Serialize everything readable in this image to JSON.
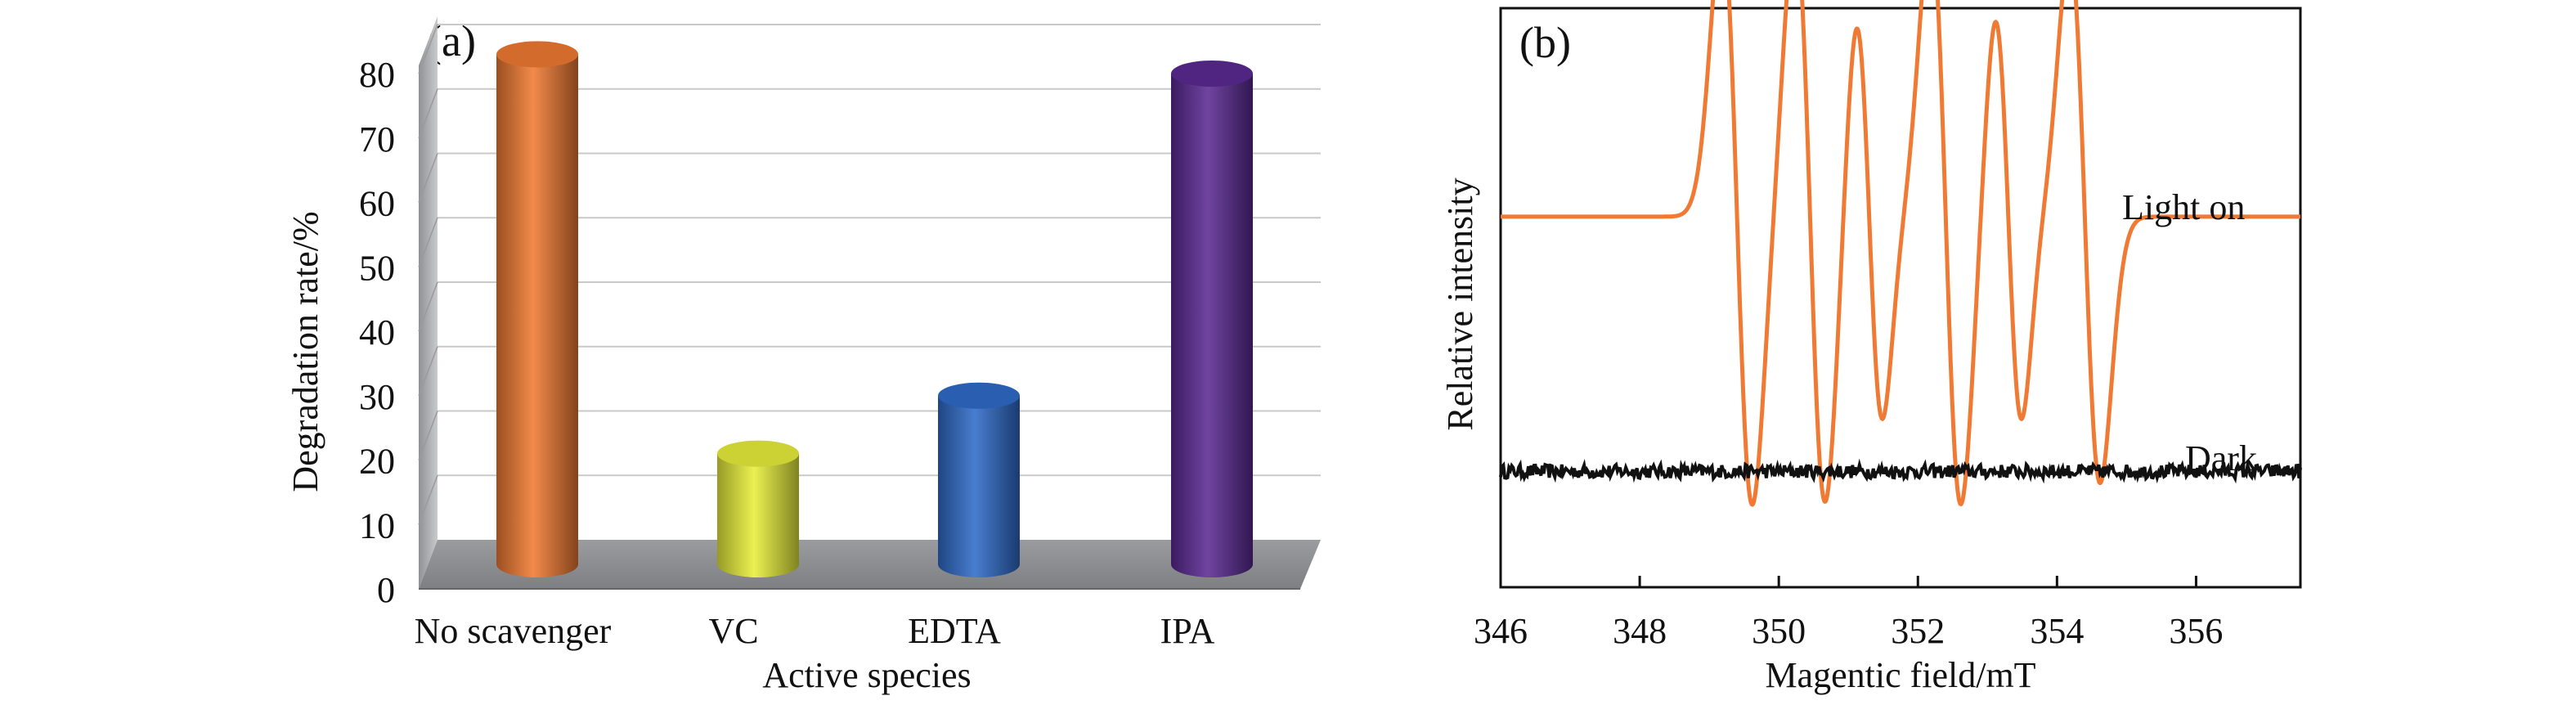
{
  "chart_data": [
    {
      "panel": "(a)",
      "type": "bar",
      "style": "3d-cylinder",
      "xlabel": "Active species",
      "ylabel": "Degradation rate/%",
      "categories": [
        "No scavenger",
        "VC",
        "EDTA",
        "IPA"
      ],
      "values": [
        83,
        21,
        30,
        80
      ],
      "colors": [
        "#f07a33",
        "#e8ef3a",
        "#2f6bc9",
        "#5b2a93"
      ],
      "ylim": [
        0,
        80
      ],
      "yticks": [
        0,
        10,
        20,
        30,
        40,
        50,
        60,
        70,
        80
      ],
      "grid": true,
      "legend": "none"
    },
    {
      "panel": "(b)",
      "type": "line",
      "xlabel": "Magentic field/mT",
      "ylabel": "Relative intensity",
      "xlim": [
        346,
        357.5
      ],
      "xticks": [
        346,
        348,
        350,
        352,
        354,
        356
      ],
      "ylim": [
        0,
        1
      ],
      "grid": false,
      "series": [
        {
          "name": "Light on",
          "color": "#f07a33",
          "baseline": 0.64,
          "peaks": [
            {
              "center": 349.4,
              "amp": 0.5,
              "width": 0.22
            },
            {
              "center": 350.45,
              "amp": 0.5,
              "width": 0.22
            },
            {
              "center": 351.3,
              "amp": 0.35,
              "width": 0.19
            },
            {
              "center": 352.4,
              "amp": 0.5,
              "width": 0.22
            },
            {
              "center": 353.3,
              "amp": 0.35,
              "width": 0.19
            },
            {
              "center": 354.4,
              "amp": 0.46,
              "width": 0.22
            }
          ]
        },
        {
          "name": "Dark",
          "color": "#111111",
          "baseline": 0.2,
          "noise": 0.012
        }
      ]
    }
  ]
}
